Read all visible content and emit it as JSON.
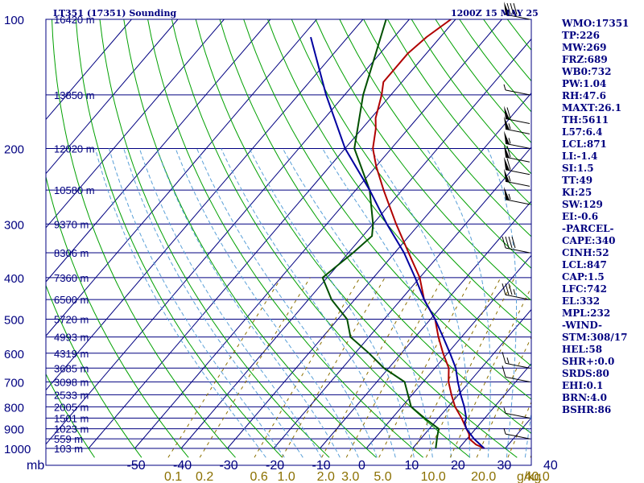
{
  "header": {
    "station": "LT351 (17351) Sounding",
    "time": "1200Z 15 MAY 25"
  },
  "colors": {
    "frame": "#000080",
    "isobar": "#000080",
    "isotherm": "#000080",
    "dry_adiabat": "#00a000",
    "moist_adiabat": "#5aa0d8",
    "mixing_ratio": "#8b7000",
    "temperature": "#b00000",
    "dewpoint": "#005000",
    "parcel": "#0000a0",
    "wind_barb": "#000000"
  },
  "icons": {
    "wind_barb": "wind-barb-icon"
  },
  "chart_data": {
    "type": "skew-t",
    "title": "LT351 (17351) Sounding",
    "valid_time": "1200Z 15 MAY 25",
    "pressure_axis": {
      "scale": "log",
      "range": [
        1000,
        100
      ],
      "labels": [
        "100",
        "200",
        "300",
        "400",
        "500",
        "600",
        "700",
        "800",
        "900",
        "1000"
      ],
      "label_values": [
        100,
        200,
        300,
        400,
        500,
        600,
        700,
        800,
        900,
        1000
      ]
    },
    "temperature_axis": {
      "unit_label": "mb",
      "labels": [
        "-50",
        "-40",
        "-30",
        "-20",
        "-10",
        "0",
        "10",
        "20",
        "30",
        "40"
      ],
      "values": [
        -50,
        -40,
        -30,
        -20,
        -10,
        0,
        10,
        20,
        30,
        40
      ]
    },
    "mixing_ratio_axis": {
      "unit": "g/kg",
      "labels": [
        "0.1",
        "0.2",
        "0.6",
        "1.0",
        "2.0",
        "3.0",
        "5.0",
        "10.0",
        "20.0",
        "40.0"
      ],
      "values": [
        0.1,
        0.2,
        0.6,
        1.0,
        2.0,
        3.0,
        5.0,
        10.0,
        20.0,
        40.0
      ]
    },
    "height_labels": [
      {
        "p": 100,
        "label": "16420 m"
      },
      {
        "p": 150,
        "label": "13850 m"
      },
      {
        "p": 200,
        "label": "12020 m"
      },
      {
        "p": 250,
        "label": "10580 m"
      },
      {
        "p": 300,
        "label": "9370 m"
      },
      {
        "p": 350,
        "label": "8306 m"
      },
      {
        "p": 400,
        "label": "7360 m"
      },
      {
        "p": 450,
        "label": "6500 m"
      },
      {
        "p": 500,
        "label": "5720 m"
      },
      {
        "p": 550,
        "label": "4993 m"
      },
      {
        "p": 600,
        "label": "4319 m"
      },
      {
        "p": 650,
        "label": "3685 m"
      },
      {
        "p": 700,
        "label": "3098 m"
      },
      {
        "p": 750,
        "label": "2533 m"
      },
      {
        "p": 800,
        "label": "2005 m"
      },
      {
        "p": 850,
        "label": "1501 m"
      },
      {
        "p": 900,
        "label": "1023 m"
      },
      {
        "p": 950,
        "label": "559 m"
      },
      {
        "p": 1000,
        "label": "103 m"
      }
    ],
    "series": [
      {
        "name": "temperature",
        "points": [
          [
            1000,
            25.5
          ],
          [
            980,
            23
          ],
          [
            950,
            20.5
          ],
          [
            925,
            19.5
          ],
          [
            900,
            18
          ],
          [
            850,
            15
          ],
          [
            800,
            11.5
          ],
          [
            750,
            8.5
          ],
          [
            700,
            5.5
          ],
          [
            650,
            3
          ],
          [
            600,
            -1
          ],
          [
            550,
            -5
          ],
          [
            500,
            -9
          ],
          [
            450,
            -15
          ],
          [
            400,
            -20
          ],
          [
            350,
            -27
          ],
          [
            300,
            -35
          ],
          [
            250,
            -44
          ],
          [
            220,
            -50
          ],
          [
            200,
            -54
          ],
          [
            180,
            -57
          ],
          [
            170,
            -59
          ],
          [
            150,
            -62
          ],
          [
            140,
            -64
          ],
          [
            120,
            -64
          ],
          [
            110,
            -63
          ],
          [
            100,
            -61
          ]
        ]
      },
      {
        "name": "dewpoint",
        "points": [
          [
            1000,
            15
          ],
          [
            950,
            13.5
          ],
          [
            900,
            12
          ],
          [
            850,
            7
          ],
          [
            800,
            2
          ],
          [
            700,
            -4
          ],
          [
            650,
            -11
          ],
          [
            600,
            -17
          ],
          [
            550,
            -24
          ],
          [
            500,
            -28
          ],
          [
            450,
            -35
          ],
          [
            400,
            -41
          ],
          [
            350,
            -39
          ],
          [
            320,
            -38
          ],
          [
            300,
            -40
          ],
          [
            250,
            -47
          ],
          [
            200,
            -58
          ],
          [
            150,
            -66
          ],
          [
            100,
            -75
          ]
        ]
      },
      {
        "name": "parcel",
        "points": [
          [
            1000,
            25.5
          ],
          [
            950,
            21.5
          ],
          [
            900,
            18
          ],
          [
            871,
            16.5
          ],
          [
            850,
            16
          ],
          [
            800,
            13.5
          ],
          [
            750,
            10.5
          ],
          [
            700,
            7.5
          ],
          [
            650,
            4.5
          ],
          [
            600,
            0.5
          ],
          [
            550,
            -4
          ],
          [
            500,
            -9
          ],
          [
            450,
            -15
          ],
          [
            400,
            -21
          ],
          [
            350,
            -28
          ],
          [
            300,
            -37
          ],
          [
            250,
            -47
          ],
          [
            200,
            -60
          ],
          [
            150,
            -74
          ],
          [
            110,
            -88
          ]
        ]
      }
    ],
    "wind_barbs": [
      {
        "p": 100,
        "speed": 80
      },
      {
        "p": 150,
        "speed": 5
      },
      {
        "p": 175,
        "speed": 60
      },
      {
        "p": 185,
        "speed": 55
      },
      {
        "p": 200,
        "speed": 55
      },
      {
        "p": 215,
        "speed": 60
      },
      {
        "p": 230,
        "speed": 60
      },
      {
        "p": 245,
        "speed": 55
      },
      {
        "p": 270,
        "speed": 55
      },
      {
        "p": 350,
        "speed": 40
      },
      {
        "p": 450,
        "speed": 35
      },
      {
        "p": 650,
        "speed": 15
      },
      {
        "p": 700,
        "speed": 10
      },
      {
        "p": 850,
        "speed": 5
      },
      {
        "p": 950,
        "speed": 5
      }
    ],
    "grid": true
  },
  "sidebar": {
    "lines": [
      "WMO:17351",
      "TP:226",
      "MW:269",
      "FRZ:689",
      "WB0:732",
      "PW:1.04",
      "RH:47.6",
      "MAXT:26.1",
      "TH:5611",
      "L57:6.4",
      "LCL:871",
      "LI:-1.4",
      "SI:1.5",
      "TT:49",
      "KI:25",
      "SW:129",
      "EI:-0.6",
      "-PARCEL-",
      "CAPE:340",
      "CINH:52",
      "LCL:847",
      "CAP:1.5",
      "LFC:742",
      "EL:332",
      "MPL:232",
      "-WIND-",
      "STM:308/17",
      "HEL:58",
      "SHR+:0.0",
      "SRDS:80",
      "EHI:0.1",
      "BRN:4.0",
      "BSHR:86"
    ]
  }
}
